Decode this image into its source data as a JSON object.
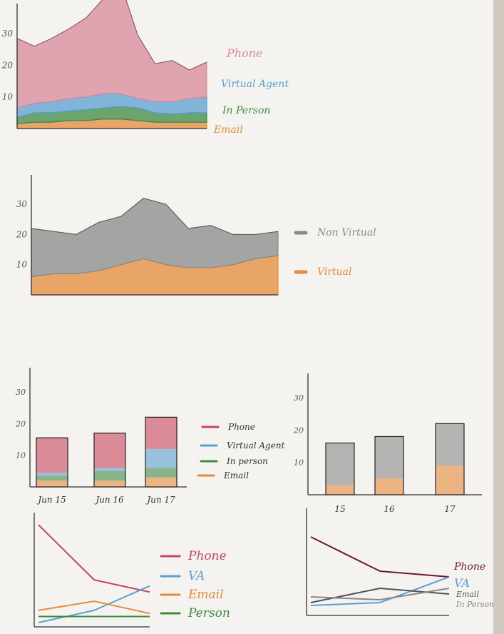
{
  "chart_data": [
    {
      "type": "area",
      "stacked": true,
      "y_ticks": [
        "30",
        "20",
        "10"
      ],
      "x": [
        1,
        2,
        3,
        4,
        5,
        6,
        7,
        8,
        9,
        10,
        11,
        12
      ],
      "series": [
        {
          "name": "Email",
          "color": "#e68a3b",
          "values": [
            1.5,
            2,
            2,
            2.5,
            2.5,
            3,
            3,
            2.5,
            2,
            2,
            2,
            2
          ]
        },
        {
          "name": "In Person",
          "color": "#3f8a43",
          "values": [
            2,
            3,
            3,
            3,
            3.5,
            3.5,
            4,
            4,
            3,
            2.5,
            3,
            3
          ]
        },
        {
          "name": "Virtual Agent",
          "color": "#5aa0d2",
          "values": [
            3,
            3,
            3.5,
            4,
            4,
            4.5,
            4,
            3,
            3.5,
            4,
            4.5,
            5
          ]
        },
        {
          "name": "Phone",
          "color": "#d98a9b",
          "values": [
            22,
            18,
            20,
            22,
            25,
            30,
            35,
            20,
            12,
            13,
            9,
            11
          ]
        }
      ]
    },
    {
      "type": "area",
      "stacked": true,
      "y_ticks": [
        "30",
        "20",
        "10"
      ],
      "x": [
        1,
        2,
        3,
        4,
        5,
        6,
        7,
        8,
        9,
        10,
        11,
        12
      ],
      "series": [
        {
          "name": "Virtual",
          "color": "#e68a3b",
          "values": [
            6,
            7,
            7,
            8,
            10,
            12,
            10,
            9,
            9,
            10,
            12,
            13
          ]
        },
        {
          "name": "Non Virtual",
          "color": "#8a8a8a",
          "values": [
            16,
            14,
            13,
            16,
            16,
            20,
            20,
            13,
            14,
            10,
            8,
            8
          ]
        }
      ]
    },
    {
      "type": "bar",
      "stacked": true,
      "y_ticks": [
        "30",
        "20",
        "10"
      ],
      "categories": [
        "Jun 15",
        "Jun 16",
        "Jun 17"
      ],
      "series": [
        {
          "name": "Email",
          "color": "#e68a3b",
          "values": [
            2,
            2,
            3
          ]
        },
        {
          "name": "In person",
          "color": "#3f8a43",
          "values": [
            1.5,
            3,
            3
          ]
        },
        {
          "name": "Virtual Agent",
          "color": "#5aa0d2",
          "values": [
            1,
            1,
            6
          ]
        },
        {
          "name": "Phone",
          "color": "#c9455e",
          "values": [
            11,
            11,
            10
          ]
        }
      ]
    },
    {
      "type": "bar",
      "stacked": true,
      "y_ticks": [
        "30",
        "20",
        "10"
      ],
      "categories": [
        "15",
        "16",
        "17"
      ],
      "series": [
        {
          "name": "Virtual",
          "color": "#e68a3b",
          "values": [
            3,
            5,
            9
          ]
        },
        {
          "name": "Non Virtual",
          "color": "#8a8a8a",
          "values": [
            13,
            13,
            13
          ]
        }
      ]
    },
    {
      "type": "line",
      "x": [
        1,
        2,
        3
      ],
      "series": [
        {
          "name": "Phone",
          "color": "#c9455e",
          "values": [
            16,
            7,
            5
          ]
        },
        {
          "name": "VA",
          "color": "#5aa0d2",
          "values": [
            0,
            2,
            6
          ]
        },
        {
          "name": "Email",
          "color": "#e68a3b",
          "values": [
            2,
            3.5,
            1.5
          ]
        },
        {
          "name": "Person",
          "color": "#3f8a43",
          "values": [
            1,
            1,
            1
          ]
        }
      ]
    },
    {
      "type": "line",
      "x": [
        1,
        2,
        3
      ],
      "series": [
        {
          "name": "Phone",
          "color": "#6b1a2c",
          "values": [
            13,
            7,
            6
          ]
        },
        {
          "name": "VA",
          "color": "#5aa0d2",
          "values": [
            1,
            1.5,
            6
          ]
        },
        {
          "name": "Email",
          "color": "#555555",
          "values": [
            1.5,
            4,
            3
          ]
        },
        {
          "name": "In Person",
          "color": "#888888",
          "values": [
            2.5,
            2,
            4
          ]
        }
      ]
    }
  ]
}
